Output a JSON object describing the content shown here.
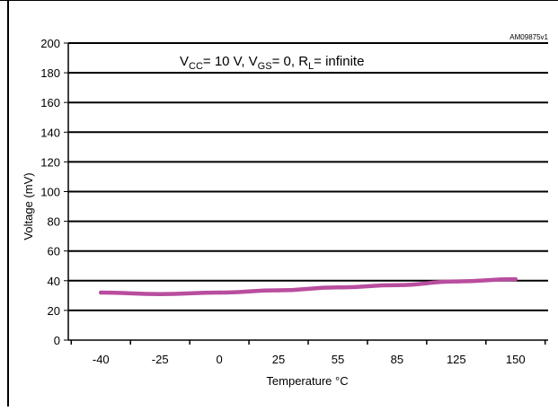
{
  "chart_data": {
    "type": "line",
    "note": "AM09875v1",
    "condition": {
      "vcc_main": "V",
      "vcc_sub": "CC",
      "vcc_value": "= 10 V, ",
      "vgs_main": "V",
      "vgs_sub": "GS",
      "vgs_value": "= 0, ",
      "rl_main": "R",
      "rl_sub": "L",
      "rl_value": "= infinite"
    },
    "xlabel": "Temperature °C",
    "ylabel": "Voltage  (mV)",
    "categories": [
      "-40",
      "-25",
      "0",
      "25",
      "55",
      "85",
      "125",
      "150"
    ],
    "ylim": [
      0,
      200
    ],
    "yticks": [
      "0",
      "20",
      "40",
      "60",
      "80",
      "100",
      "120",
      "140",
      "160",
      "180",
      "200"
    ],
    "grid": true,
    "series": [
      {
        "values": [
          32,
          31,
          32,
          33.5,
          35.5,
          37,
          39.5,
          41
        ]
      }
    ],
    "colors": {
      "series": "#b94d9e",
      "grid": "#000000"
    }
  }
}
